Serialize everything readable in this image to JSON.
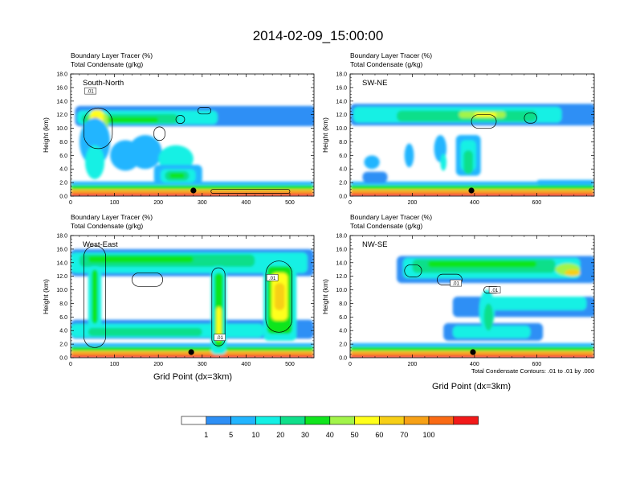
{
  "title": "2014-02-09_15:00:00",
  "palette": [
    "#ffffff",
    "#2d8ff5",
    "#22b5ff",
    "#14f0e4",
    "#0fdf8a",
    "#10e51d",
    "#a2f44a",
    "#ffff1a",
    "#f7cf16",
    "#f7a116",
    "#fa6a14",
    "#f21919"
  ],
  "legend": {
    "labels": [
      "1",
      "5",
      "10",
      "20",
      "30",
      "40",
      "50",
      "60",
      "70",
      "100"
    ]
  },
  "xaxis_label": "Grid Point (dx=3km)",
  "contour_note": "Total Condensate Contours: .01 to .01 by .000",
  "chart_data": [
    {
      "type": "heatmap",
      "section": "South-North",
      "title_line1": "Boundary Layer Tracer   (%)",
      "title_line2": "Total Condensate   (g/kg)",
      "ylabel": "Height (km)",
      "xlim": [
        0,
        555
      ],
      "ylim": [
        0,
        18
      ],
      "xticks": [
        0,
        100,
        200,
        300,
        400,
        500
      ],
      "yticks": [
        0,
        2,
        4,
        6,
        8,
        10,
        12,
        14,
        16,
        18
      ],
      "ytick_labels": [
        "0.0",
        "2.0",
        "4.0",
        "6.0",
        "8.0",
        "10.0",
        "12.0",
        "14.0",
        "16.0",
        "18.0"
      ],
      "marker_x": 280,
      "contour_labels": [
        {
          "x": 45,
          "y": 15.5,
          "text": ".01"
        }
      ],
      "blobs": [
        {
          "x": 0,
          "x2": 555,
          "y": 0.2,
          "w": 0.4,
          "r": 0,
          "l": 11
        },
        {
          "x": 0,
          "x2": 555,
          "y": 0.7,
          "w": 0.5,
          "r": 0,
          "l": 9
        },
        {
          "x": 0,
          "x2": 555,
          "y": 1.3,
          "w": 0.6,
          "r": 0,
          "l": 5
        },
        {
          "x": 0,
          "x2": 555,
          "y": 1.9,
          "w": 0.5,
          "r": 0,
          "l": 2
        },
        {
          "x": 10,
          "x2": 560,
          "y": 11.8,
          "w": 3.0,
          "r": 0,
          "l": 1,
          "rough": 0.8
        },
        {
          "x": 15,
          "x2": 335,
          "y": 11.6,
          "w": 2.0,
          "r": 0,
          "l": 3,
          "rough": 0.5
        },
        {
          "x": 25,
          "x2": 245,
          "y": 11.4,
          "w": 1.4,
          "r": 0,
          "l": 4,
          "rough": 0.4
        },
        {
          "x": 35,
          "x2": 200,
          "y": 11.2,
          "w": 0.9,
          "r": 0,
          "l": 5
        },
        {
          "x": 40,
          "x2": 85,
          "y": 10.5,
          "w": 3.5,
          "r": 0,
          "l": 6
        },
        {
          "x": 45,
          "x2": 75,
          "y": 11.5,
          "w": 2.4,
          "r": 0,
          "l": 7
        },
        {
          "x": 48,
          "x2": 65,
          "y": 11.0,
          "w": 1.5,
          "r": 0,
          "l": 8
        },
        {
          "x": 55,
          "y": 8.0,
          "w": 7.0,
          "r": 35,
          "l": 2
        },
        {
          "x": 55,
          "y": 5.0,
          "w": 5.0,
          "r": 22,
          "l": 3
        },
        {
          "x": 125,
          "y": 6.0,
          "w": 4.5,
          "r": 35,
          "l": 2
        },
        {
          "x": 170,
          "y": 6.5,
          "w": 5.0,
          "r": 38,
          "l": 2
        },
        {
          "x": 240,
          "y": 5.5,
          "w": 4.0,
          "r": 40,
          "l": 3
        },
        {
          "x": 190,
          "x2": 300,
          "y": 3.2,
          "w": 2.8,
          "r": 0,
          "l": 2
        },
        {
          "x": 205,
          "x2": 285,
          "y": 3.0,
          "w": 2.0,
          "r": 0,
          "l": 3
        },
        {
          "x": 215,
          "x2": 270,
          "y": 3.0,
          "w": 1.4,
          "r": 0,
          "l": 4
        },
        {
          "x": 225,
          "x2": 260,
          "y": 3.0,
          "w": 0.8,
          "r": 0,
          "l": 5
        }
      ],
      "contours": [
        {
          "x": 30,
          "x2": 95,
          "y": 10.0,
          "w": 6.0
        },
        {
          "x": 190,
          "x2": 215,
          "y": 9.2,
          "w": 2.0
        },
        {
          "x": 240,
          "x2": 260,
          "y": 11.3,
          "w": 1.2
        },
        {
          "x": 290,
          "x2": 320,
          "y": 12.6,
          "w": 1.0
        },
        {
          "x": 320,
          "x2": 500,
          "y": 0.7,
          "w": 0.6
        }
      ]
    },
    {
      "type": "heatmap",
      "section": "SW-NE",
      "title_line1": "Boundary Layer Tracer   (%)",
      "title_line2": "Total Condensate   (g/kg)",
      "ylabel": "Height (km)",
      "xlim": [
        0,
        785
      ],
      "ylim": [
        0,
        18
      ],
      "xticks": [
        0,
        200,
        400,
        600
      ],
      "yticks": [
        0,
        2,
        4,
        6,
        8,
        10,
        12,
        14,
        16,
        18
      ],
      "ytick_labels": [
        "0.0",
        "2.0",
        "4.0",
        "6.0",
        "8.0",
        "10.0",
        "12.0",
        "14.0",
        "16.0",
        "18.0"
      ],
      "marker_x": 390,
      "contour_labels": [],
      "blobs": [
        {
          "x": 0,
          "x2": 785,
          "y": 0.2,
          "w": 0.4,
          "r": 0,
          "l": 11
        },
        {
          "x": 0,
          "x2": 785,
          "y": 0.7,
          "w": 0.5,
          "r": 0,
          "l": 9
        },
        {
          "x": 0,
          "x2": 785,
          "y": 1.3,
          "w": 0.6,
          "r": 0,
          "l": 5
        },
        {
          "x": 0,
          "x2": 785,
          "y": 1.9,
          "w": 0.5,
          "r": 0,
          "l": 2
        },
        {
          "x": 0,
          "x2": 790,
          "y": 12.0,
          "w": 3.2,
          "r": 0,
          "l": 1,
          "rough": 0.8
        },
        {
          "x": 10,
          "x2": 680,
          "y": 12.0,
          "w": 2.3,
          "r": 0,
          "l": 3,
          "rough": 0.5
        },
        {
          "x": 150,
          "x2": 600,
          "y": 11.8,
          "w": 1.6,
          "r": 0,
          "l": 4,
          "rough": 0.4
        },
        {
          "x": 350,
          "x2": 500,
          "y": 12.0,
          "w": 1.0,
          "r": 0,
          "l": 6
        },
        {
          "x": 400,
          "x2": 470,
          "y": 12.0,
          "w": 0.6,
          "r": 0,
          "l": 7
        },
        {
          "x": 340,
          "x2": 420,
          "y": 6.0,
          "w": 6.0,
          "r": 0,
          "l": 2
        },
        {
          "x": 355,
          "x2": 405,
          "y": 6.0,
          "w": 4.5,
          "r": 0,
          "l": 3
        },
        {
          "x": 365,
          "x2": 395,
          "y": 5.0,
          "w": 3.5,
          "r": 0,
          "l": 4
        },
        {
          "x": 190,
          "y": 6.0,
          "w": 3.5,
          "r": 15,
          "l": 2
        },
        {
          "x": 290,
          "y": 7.0,
          "w": 4.0,
          "r": 20,
          "l": 2
        },
        {
          "x": 300,
          "y": 5.0,
          "w": 2.5,
          "r": 10,
          "l": 3
        },
        {
          "x": 70,
          "y": 5.0,
          "w": 2.0,
          "r": 25,
          "l": 2
        },
        {
          "x": 40,
          "x2": 120,
          "y": 2.8,
          "w": 1.6,
          "r": 0,
          "l": 1
        },
        {
          "x": 600,
          "x2": 785,
          "y": 2.0,
          "w": 0.8,
          "r": 0,
          "l": 2
        }
      ],
      "contours": [
        {
          "x": 390,
          "x2": 470,
          "y": 11.0,
          "w": 2.0
        },
        {
          "x": 560,
          "x2": 600,
          "y": 11.5,
          "w": 1.5
        }
      ]
    },
    {
      "type": "heatmap",
      "section": "West-East",
      "title_line1": "Boundary Layer Tracer   (%)",
      "title_line2": "Total Condensate   (g/kg)",
      "ylabel": "Height (km)",
      "xlim": [
        0,
        555
      ],
      "ylim": [
        0,
        18
      ],
      "xticks": [
        0,
        100,
        200,
        300,
        400,
        500
      ],
      "yticks": [
        0,
        2,
        4,
        6,
        8,
        10,
        12,
        14,
        16,
        18
      ],
      "ytick_labels": [
        "0.0",
        "2.0",
        "4.0",
        "6.0",
        "8.0",
        "10.0",
        "12.0",
        "14.0",
        "16.0",
        "18.0"
      ],
      "marker_x": 275,
      "contour_labels": [
        {
          "x": 460,
          "y": 11.8,
          "text": ".01"
        },
        {
          "x": 340,
          "y": 3.0,
          "text": ".01"
        }
      ],
      "blobs": [
        {
          "x": 0,
          "x2": 555,
          "y": 0.2,
          "w": 0.4,
          "r": 0,
          "l": 11
        },
        {
          "x": 0,
          "x2": 555,
          "y": 0.7,
          "w": 0.5,
          "r": 0,
          "l": 9
        },
        {
          "x": 0,
          "x2": 555,
          "y": 1.3,
          "w": 0.6,
          "r": 0,
          "l": 5
        },
        {
          "x": 0,
          "x2": 555,
          "y": 1.9,
          "w": 0.5,
          "r": 0,
          "l": 2
        },
        {
          "x": 0,
          "x2": 555,
          "y": 14.0,
          "w": 4.0,
          "r": 0,
          "l": 1,
          "rough": 0.7
        },
        {
          "x": 0,
          "x2": 540,
          "y": 14.0,
          "w": 3.0,
          "r": 0,
          "l": 3,
          "rough": 0.5
        },
        {
          "x": 20,
          "x2": 420,
          "y": 14.3,
          "w": 1.8,
          "r": 0,
          "l": 4,
          "rough": 0.3
        },
        {
          "x": 40,
          "x2": 280,
          "y": 14.5,
          "w": 1.0,
          "r": 0,
          "l": 5
        },
        {
          "x": 0,
          "x2": 555,
          "y": 4.2,
          "w": 2.8,
          "r": 0,
          "l": 1,
          "rough": 0.5
        },
        {
          "x": 0,
          "x2": 440,
          "y": 4.0,
          "w": 2.0,
          "r": 0,
          "l": 3,
          "rough": 0.4
        },
        {
          "x": 40,
          "x2": 300,
          "y": 3.8,
          "w": 1.2,
          "r": 0,
          "l": 4
        },
        {
          "x": 40,
          "x2": 70,
          "y": 9.0,
          "w": 9.0,
          "r": 0,
          "l": 3
        },
        {
          "x": 48,
          "x2": 62,
          "y": 9.0,
          "w": 8.0,
          "r": 0,
          "l": 5
        },
        {
          "x": 320,
          "x2": 355,
          "y": 7.0,
          "w": 13.0,
          "r": 0,
          "l": 3
        },
        {
          "x": 328,
          "x2": 348,
          "y": 7.0,
          "w": 11.0,
          "r": 0,
          "l": 5
        },
        {
          "x": 332,
          "x2": 344,
          "y": 5.0,
          "w": 5.0,
          "r": 0,
          "l": 7
        },
        {
          "x": 440,
          "x2": 515,
          "y": 8.5,
          "w": 12.0,
          "r": 0,
          "l": 3
        },
        {
          "x": 448,
          "x2": 505,
          "y": 8.5,
          "w": 10.0,
          "r": 0,
          "l": 5
        },
        {
          "x": 458,
          "x2": 495,
          "y": 9.0,
          "w": 7.0,
          "r": 0,
          "l": 7
        },
        {
          "x": 465,
          "x2": 488,
          "y": 9.0,
          "w": 4.0,
          "r": 0,
          "l": 8
        }
      ],
      "contours": [
        {
          "x": 445,
          "x2": 505,
          "y": 9.0,
          "w": 10.5
        },
        {
          "x": 322,
          "x2": 352,
          "y": 7.5,
          "w": 11.5
        },
        {
          "x": 30,
          "x2": 80,
          "y": 9.0,
          "w": 15.0
        },
        {
          "x": 140,
          "x2": 210,
          "y": 11.5,
          "w": 2.0
        }
      ]
    },
    {
      "type": "heatmap",
      "section": "NW-SE",
      "title_line1": "Boundary Layer Tracer   (%)",
      "title_line2": "Total Condensate   (g/kg)",
      "ylabel": "Height (km)",
      "xlim": [
        0,
        785
      ],
      "ylim": [
        0,
        18
      ],
      "xticks": [
        0,
        200,
        400,
        600
      ],
      "yticks": [
        0,
        2,
        4,
        6,
        8,
        10,
        12,
        14,
        16,
        18
      ],
      "ytick_labels": [
        "0.0",
        "2.0",
        "4.0",
        "6.0",
        "8.0",
        "10.0",
        "12.0",
        "14.0",
        "16.0",
        "18.0"
      ],
      "marker_x": 395,
      "contour_labels": [
        {
          "x": 340,
          "y": 11.0,
          "text": ".01"
        },
        {
          "x": 465,
          "y": 10.0,
          "text": ".01"
        }
      ],
      "blobs": [
        {
          "x": 0,
          "x2": 785,
          "y": 0.2,
          "w": 0.4,
          "r": 0,
          "l": 11
        },
        {
          "x": 0,
          "x2": 785,
          "y": 0.7,
          "w": 0.5,
          "r": 0,
          "l": 9
        },
        {
          "x": 0,
          "x2": 785,
          "y": 1.3,
          "w": 0.6,
          "r": 0,
          "l": 5
        },
        {
          "x": 0,
          "x2": 785,
          "y": 1.9,
          "w": 0.5,
          "r": 0,
          "l": 2
        },
        {
          "x": 150,
          "x2": 790,
          "y": 13.0,
          "w": 4.0,
          "r": 0,
          "l": 1,
          "rough": 0.8
        },
        {
          "x": 170,
          "x2": 740,
          "y": 13.2,
          "w": 3.0,
          "r": 0,
          "l": 3,
          "rough": 0.6
        },
        {
          "x": 200,
          "x2": 660,
          "y": 13.5,
          "w": 2.0,
          "r": 0,
          "l": 4,
          "rough": 0.4
        },
        {
          "x": 250,
          "x2": 600,
          "y": 13.8,
          "w": 1.0,
          "r": 0,
          "l": 5
        },
        {
          "x": 330,
          "x2": 790,
          "y": 7.5,
          "w": 3.0,
          "r": 0,
          "l": 1,
          "rough": 0.5
        },
        {
          "x": 420,
          "x2": 760,
          "y": 8.0,
          "w": 2.0,
          "r": 0,
          "l": 3
        },
        {
          "x": 300,
          "x2": 620,
          "y": 3.8,
          "w": 2.6,
          "r": 0,
          "l": 1,
          "rough": 0.5
        },
        {
          "x": 330,
          "x2": 580,
          "y": 3.8,
          "w": 1.8,
          "r": 0,
          "l": 3
        },
        {
          "x": 440,
          "y": 7.0,
          "w": 6.0,
          "r": 25,
          "l": 3
        },
        {
          "x": 445,
          "y": 6.0,
          "w": 4.0,
          "r": 15,
          "l": 4
        },
        {
          "x": 700,
          "y": 13.0,
          "w": 1.8,
          "r": 40,
          "l": 6
        },
        {
          "x": 715,
          "y": 12.5,
          "w": 1.0,
          "r": 25,
          "l": 8
        }
      ],
      "contours": [
        {
          "x": 175,
          "x2": 230,
          "y": 12.8,
          "w": 1.8
        },
        {
          "x": 280,
          "x2": 360,
          "y": 11.5,
          "w": 1.6
        },
        {
          "x": 430,
          "x2": 480,
          "y": 10.0,
          "w": 1.0
        }
      ]
    }
  ]
}
